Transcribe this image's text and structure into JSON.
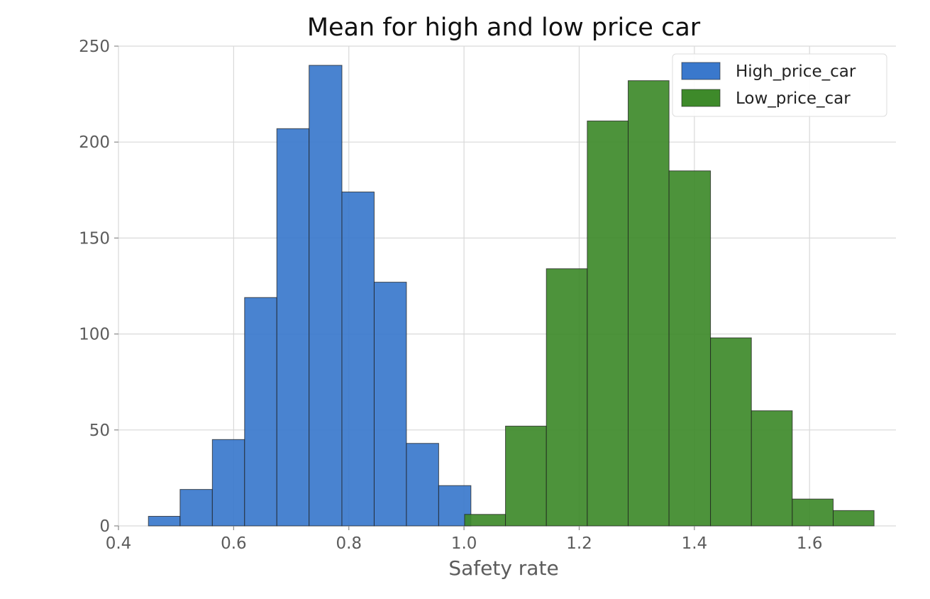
{
  "chart_data": {
    "type": "bar",
    "title": "Mean for high and low price car",
    "xlabel": "Safety rate",
    "ylabel": "",
    "xlim": [
      0.4,
      1.75
    ],
    "ylim": [
      0,
      250
    ],
    "xticks": [
      0.4,
      0.6,
      0.8,
      1.0,
      1.2,
      1.4,
      1.6
    ],
    "xtick_labels": [
      "0.4",
      "0.6",
      "0.8",
      "1.0",
      "1.2",
      "1.4",
      "1.6"
    ],
    "yticks": [
      0,
      50,
      100,
      150,
      200,
      250
    ],
    "ytick_labels": [
      "0",
      "50",
      "100",
      "150",
      "200",
      "250"
    ],
    "grid": true,
    "legend_position": "top-right",
    "series": [
      {
        "name": "High_price_car",
        "color": "#3a78cc",
        "bin_edges": [
          0.452,
          0.507,
          0.563,
          0.619,
          0.675,
          0.731,
          0.788,
          0.844,
          0.9,
          0.956,
          1.012
        ],
        "values": [
          5,
          19,
          45,
          119,
          207,
          240,
          174,
          127,
          43,
          21
        ]
      },
      {
        "name": "Low_price_car",
        "color": "#3e8a2a",
        "bin_edges": [
          1.001,
          1.072,
          1.143,
          1.214,
          1.285,
          1.356,
          1.428,
          1.499,
          1.57,
          1.641,
          1.712
        ],
        "values": [
          6,
          52,
          134,
          211,
          232,
          185,
          98,
          60,
          14,
          8
        ]
      }
    ]
  }
}
